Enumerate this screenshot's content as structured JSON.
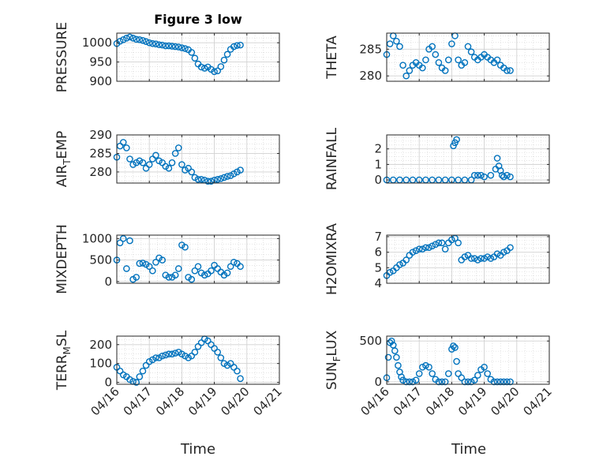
{
  "figure": {
    "title": "Figure 3 low"
  },
  "colors": {
    "marker": "#0072BD",
    "axis": "#262626",
    "grid": "#d2d2d2",
    "background": "#ffffff"
  },
  "chart_data": [
    {
      "id": "pressure",
      "type": "scatter",
      "ylabel": "PRESSURE",
      "title": "Figure 3 low",
      "yticks": [
        900,
        950,
        1000
      ],
      "ytick_labels": [
        "900",
        "950",
        "1000"
      ],
      "ylim": [
        900,
        1025
      ],
      "x_day": [
        0.0,
        0.1,
        0.2,
        0.3,
        0.4,
        0.5,
        0.6,
        0.7,
        0.8,
        0.9,
        1.0,
        1.1,
        1.2,
        1.3,
        1.4,
        1.5,
        1.6,
        1.7,
        1.8,
        1.9,
        2.0,
        2.1,
        2.2,
        2.3,
        2.4,
        2.5,
        2.6,
        2.7,
        2.8,
        2.9,
        3.0,
        3.1,
        3.2,
        3.3,
        3.4,
        3.5,
        3.6,
        3.7,
        3.8
      ],
      "y": [
        998,
        1004,
        1008,
        1012,
        1015,
        1012,
        1009,
        1008,
        1006,
        1003,
        1000,
        998,
        997,
        995,
        994,
        992,
        992,
        991,
        990,
        989,
        987,
        985,
        982,
        975,
        960,
        945,
        937,
        934,
        937,
        931,
        925,
        927,
        938,
        955,
        970,
        983,
        990,
        993,
        994
      ]
    },
    {
      "id": "theta",
      "type": "scatter",
      "ylabel": "THETA",
      "yticks": [
        280,
        285
      ],
      "ytick_labels": [
        "280",
        "285"
      ],
      "ylim": [
        279,
        288
      ],
      "x_day": [
        0.0,
        0.1,
        0.2,
        0.3,
        0.4,
        0.5,
        0.6,
        0.7,
        0.8,
        0.9,
        1.0,
        1.1,
        1.2,
        1.3,
        1.4,
        1.5,
        1.6,
        1.7,
        1.8,
        1.9,
        2.0,
        2.1,
        2.2,
        2.3,
        2.4,
        2.5,
        2.6,
        2.7,
        2.8,
        2.9,
        3.0,
        3.1,
        3.2,
        3.3,
        3.4,
        3.5,
        3.6,
        3.7,
        3.8
      ],
      "y": [
        284.0,
        286.0,
        287.5,
        286.5,
        285.5,
        282.0,
        280.0,
        281.0,
        282.0,
        282.5,
        282.0,
        281.5,
        283.0,
        285.0,
        285.5,
        284.0,
        282.5,
        281.5,
        281.0,
        283.0,
        286.0,
        287.5,
        283.0,
        282.0,
        282.5,
        285.5,
        284.5,
        283.5,
        283.0,
        283.5,
        284.0,
        283.5,
        283.0,
        282.5,
        283.0,
        282.0,
        281.5,
        281.0,
        281.0
      ]
    },
    {
      "id": "air_temp",
      "type": "scatter",
      "ylabel": "AIR_TEMP",
      "yticks": [
        280,
        285,
        290
      ],
      "ytick_labels": [
        "280",
        "285",
        "290"
      ],
      "ylim": [
        277,
        290
      ],
      "x_day": [
        0.0,
        0.1,
        0.2,
        0.3,
        0.4,
        0.5,
        0.6,
        0.7,
        0.8,
        0.9,
        1.0,
        1.1,
        1.2,
        1.3,
        1.4,
        1.5,
        1.6,
        1.7,
        1.8,
        1.9,
        2.0,
        2.1,
        2.2,
        2.3,
        2.4,
        2.5,
        2.6,
        2.7,
        2.8,
        2.9,
        3.0,
        3.1,
        3.2,
        3.3,
        3.4,
        3.5,
        3.6,
        3.7,
        3.8
      ],
      "y": [
        284.0,
        287.0,
        288.0,
        286.5,
        283.5,
        282.0,
        282.5,
        283.0,
        282.5,
        281.0,
        282.0,
        283.5,
        284.5,
        283.0,
        282.5,
        281.5,
        281.0,
        282.5,
        285.0,
        286.5,
        282.0,
        280.5,
        281.0,
        280.0,
        278.5,
        278.0,
        278.0,
        277.8,
        277.5,
        277.5,
        277.8,
        278.0,
        278.2,
        278.5,
        278.8,
        279.0,
        279.5,
        280.0,
        280.5
      ]
    },
    {
      "id": "rainfall",
      "type": "scatter",
      "ylabel": "RAINFALL",
      "yticks": [
        0,
        1,
        2
      ],
      "ytick_labels": [
        "0",
        "1",
        "2"
      ],
      "ylim": [
        -0.2,
        2.9
      ],
      "x_day": [
        0.0,
        0.2,
        0.4,
        0.6,
        0.8,
        1.0,
        1.2,
        1.4,
        1.6,
        1.8,
        2.0,
        2.05,
        2.1,
        2.15,
        2.2,
        2.4,
        2.6,
        2.7,
        2.8,
        2.9,
        3.0,
        3.2,
        3.35,
        3.4,
        3.45,
        3.5,
        3.55,
        3.6,
        3.7,
        3.8
      ],
      "y": [
        0,
        0,
        0,
        0,
        0,
        0,
        0,
        0,
        0,
        0,
        0,
        2.2,
        2.4,
        2.6,
        0,
        0,
        0,
        0.3,
        0.3,
        0.3,
        0.2,
        0.3,
        0.7,
        1.4,
        0.9,
        0.6,
        0.3,
        0.2,
        0.3,
        0.2
      ]
    },
    {
      "id": "mixdepth",
      "type": "scatter",
      "ylabel": "MIXDEPTH",
      "yticks": [
        0,
        500,
        1000
      ],
      "ytick_labels": [
        "0",
        "500",
        "1000"
      ],
      "ylim": [
        -40,
        1080
      ],
      "x_day": [
        0.0,
        0.1,
        0.2,
        0.3,
        0.4,
        0.5,
        0.6,
        0.7,
        0.8,
        0.9,
        1.0,
        1.1,
        1.2,
        1.3,
        1.4,
        1.5,
        1.6,
        1.7,
        1.8,
        1.9,
        2.0,
        2.1,
        2.2,
        2.3,
        2.4,
        2.5,
        2.6,
        2.7,
        2.8,
        2.9,
        3.0,
        3.1,
        3.2,
        3.3,
        3.4,
        3.5,
        3.6,
        3.7,
        3.8
      ],
      "y": [
        500,
        900,
        1000,
        300,
        950,
        50,
        100,
        420,
        430,
        400,
        350,
        250,
        450,
        550,
        500,
        150,
        100,
        100,
        150,
        300,
        850,
        800,
        100,
        50,
        250,
        350,
        200,
        150,
        180,
        250,
        380,
        300,
        220,
        150,
        200,
        350,
        450,
        420,
        350
      ]
    },
    {
      "id": "h2omixra",
      "type": "scatter",
      "ylabel": "H2OMIXRA",
      "yticks": [
        4,
        5,
        6,
        7
      ],
      "ytick_labels": [
        "4",
        "5",
        "6",
        "7"
      ],
      "ylim": [
        4,
        7.1
      ],
      "x_day": [
        0.0,
        0.1,
        0.2,
        0.3,
        0.4,
        0.5,
        0.6,
        0.7,
        0.8,
        0.9,
        1.0,
        1.1,
        1.2,
        1.3,
        1.4,
        1.5,
        1.6,
        1.7,
        1.8,
        1.9,
        2.0,
        2.1,
        2.2,
        2.3,
        2.4,
        2.5,
        2.6,
        2.7,
        2.8,
        2.9,
        3.0,
        3.1,
        3.2,
        3.3,
        3.4,
        3.5,
        3.6,
        3.7,
        3.8
      ],
      "y": [
        4.5,
        4.7,
        4.8,
        5.0,
        5.2,
        5.3,
        5.5,
        5.8,
        6.0,
        6.1,
        6.2,
        6.2,
        6.3,
        6.3,
        6.4,
        6.5,
        6.6,
        6.6,
        6.2,
        6.6,
        6.8,
        6.9,
        6.6,
        5.5,
        5.7,
        5.8,
        5.6,
        5.6,
        5.5,
        5.6,
        5.6,
        5.7,
        5.6,
        5.7,
        5.9,
        5.8,
        6.0,
        6.1,
        6.3
      ]
    },
    {
      "id": "terr_msl",
      "type": "scatter",
      "ylabel": "TERR_MSL",
      "yticks": [
        0,
        100,
        200
      ],
      "ytick_labels": [
        "0",
        "100",
        "200"
      ],
      "ylim": [
        -10,
        245
      ],
      "x_day": [
        0.0,
        0.1,
        0.2,
        0.3,
        0.4,
        0.5,
        0.6,
        0.7,
        0.8,
        0.9,
        1.0,
        1.1,
        1.2,
        1.3,
        1.4,
        1.5,
        1.6,
        1.7,
        1.8,
        1.9,
        2.0,
        2.1,
        2.2,
        2.3,
        2.4,
        2.5,
        2.6,
        2.7,
        2.8,
        2.9,
        3.0,
        3.1,
        3.2,
        3.3,
        3.4,
        3.5,
        3.6,
        3.7,
        3.8
      ],
      "y": [
        80,
        60,
        40,
        30,
        15,
        5,
        0,
        30,
        60,
        90,
        110,
        120,
        130,
        130,
        140,
        145,
        150,
        150,
        155,
        160,
        150,
        140,
        130,
        140,
        160,
        190,
        210,
        230,
        220,
        200,
        180,
        160,
        130,
        100,
        90,
        100,
        80,
        60,
        20
      ]
    },
    {
      "id": "sun_flux",
      "type": "scatter",
      "ylabel": "SUN_FLUX",
      "yticks": [
        0,
        500
      ],
      "ytick_labels": [
        "0",
        "500"
      ],
      "ylim": [
        -30,
        560
      ],
      "x_day": [
        0.0,
        0.05,
        0.1,
        0.15,
        0.2,
        0.25,
        0.3,
        0.35,
        0.4,
        0.45,
        0.5,
        0.6,
        0.7,
        0.8,
        0.9,
        1.0,
        1.1,
        1.2,
        1.3,
        1.4,
        1.5,
        1.6,
        1.7,
        1.8,
        1.9,
        2.0,
        2.05,
        2.1,
        2.15,
        2.2,
        2.3,
        2.4,
        2.5,
        2.6,
        2.7,
        2.8,
        2.9,
        3.0,
        3.1,
        3.2,
        3.3,
        3.4,
        3.5,
        3.6,
        3.7,
        3.8
      ],
      "y": [
        50,
        300,
        480,
        500,
        450,
        380,
        300,
        200,
        120,
        60,
        20,
        0,
        0,
        0,
        20,
        100,
        180,
        200,
        180,
        100,
        30,
        0,
        0,
        0,
        100,
        400,
        440,
        420,
        250,
        100,
        50,
        0,
        0,
        0,
        20,
        80,
        150,
        180,
        100,
        30,
        0,
        0,
        0,
        0,
        0,
        0
      ]
    }
  ],
  "x_axis": {
    "tick_labels": [
      "04/16",
      "04/17",
      "04/18",
      "04/19",
      "04/20",
      "04/21"
    ],
    "xlabel": "Time",
    "xlim_days": [
      0,
      5
    ]
  }
}
